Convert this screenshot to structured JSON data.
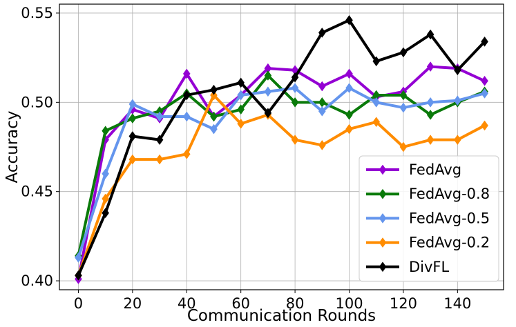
{
  "chart_data": {
    "type": "line",
    "xlabel": "Communication Rounds",
    "ylabel": "Accuracy",
    "xlim": [
      -7,
      157
    ],
    "ylim": [
      0.395,
      0.555
    ],
    "xticks": [
      "0",
      "20",
      "40",
      "60",
      "80",
      "100",
      "120",
      "140"
    ],
    "xtick_values": [
      0,
      20,
      40,
      60,
      80,
      100,
      120,
      140
    ],
    "yticks": [
      "0.40",
      "0.45",
      "0.50",
      "0.55"
    ],
    "ytick_values": [
      0.4,
      0.45,
      0.5,
      0.55
    ],
    "grid": true,
    "legend_position": "bottom-right",
    "x": [
      0,
      10,
      20,
      30,
      40,
      50,
      60,
      70,
      80,
      90,
      100,
      110,
      120,
      130,
      140,
      150
    ],
    "series": [
      {
        "name": "FedAvg",
        "color": "#9400D3",
        "marker": "diamond",
        "values": [
          0.401,
          0.479,
          0.496,
          0.491,
          0.516,
          0.492,
          0.504,
          0.519,
          0.518,
          0.509,
          0.516,
          0.503,
          0.506,
          0.52,
          0.519,
          0.512
        ]
      },
      {
        "name": "FedAvg-0.8",
        "color": "#0A7A0A",
        "marker": "diamond",
        "values": [
          0.414,
          0.484,
          0.491,
          0.495,
          0.505,
          0.492,
          0.496,
          0.515,
          0.5,
          0.5,
          0.493,
          0.504,
          0.504,
          0.493,
          0.5,
          0.506
        ]
      },
      {
        "name": "FedAvg-0.5",
        "color": "#6495ED",
        "marker": "diamond",
        "values": [
          0.413,
          0.46,
          0.499,
          0.492,
          0.492,
          0.485,
          0.504,
          0.506,
          0.508,
          0.495,
          0.508,
          0.5,
          0.497,
          0.5,
          0.501,
          0.505
        ]
      },
      {
        "name": "FedAvg-0.2",
        "color": "#FF8C00",
        "marker": "diamond",
        "values": [
          0.403,
          0.446,
          0.468,
          0.468,
          0.471,
          0.504,
          0.488,
          0.493,
          0.479,
          0.476,
          0.485,
          0.489,
          0.475,
          0.479,
          0.479,
          0.487
        ]
      },
      {
        "name": "DivFL",
        "color": "#000000",
        "marker": "diamond",
        "values": [
          0.403,
          0.438,
          0.481,
          0.479,
          0.504,
          0.507,
          0.511,
          0.494,
          0.514,
          0.539,
          0.546,
          0.523,
          0.528,
          0.538,
          0.518,
          0.534
        ]
      }
    ]
  }
}
